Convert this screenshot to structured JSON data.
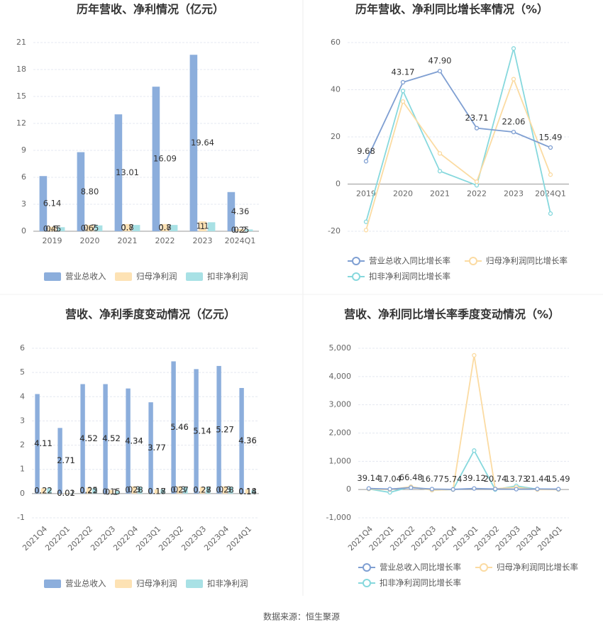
{
  "chart_data": [
    {
      "type": "bar",
      "title": "历年营收、净利情况（亿元）",
      "categories": [
        "2019",
        "2020",
        "2021",
        "2022",
        "2023",
        "2024Q1"
      ],
      "series": [
        {
          "name": "营业总收入",
          "color": "#8caedc",
          "values": [
            6.14,
            8.8,
            13.01,
            16.09,
            19.64,
            4.36
          ],
          "value_labels": [
            "6.14",
            "8.80",
            "13.01",
            "16.09",
            "19.64",
            "4.36"
          ]
        },
        {
          "name": "归母净利润",
          "color": "#fde2b4",
          "values": [
            0.5,
            0.7,
            0.8,
            0.8,
            1.1,
            0.25
          ]
        },
        {
          "name": "扣非净利润",
          "color": "#a8e1e5",
          "values": [
            0.45,
            0.65,
            0.7,
            0.7,
            1.0,
            0.2
          ]
        }
      ],
      "ylim": [
        0,
        21
      ],
      "yticks": [
        0,
        3,
        6,
        9,
        12,
        15,
        18,
        21
      ],
      "grid": true
    },
    {
      "type": "line",
      "title": "历年营收、净利同比增长率情况（%）",
      "categories": [
        "2019",
        "2020",
        "2021",
        "2022",
        "2023",
        "2024Q1"
      ],
      "series": [
        {
          "name": "营业总收入同比增长率",
          "color": "#7f9fd2",
          "values": [
            9.68,
            43.17,
            47.9,
            23.71,
            22.06,
            15.49
          ],
          "value_labels": [
            "9.68",
            "43.17",
            "47.90",
            "23.71",
            "22.06",
            "15.49"
          ]
        },
        {
          "name": "归母净利润同比增长率",
          "color": "#fbdba2",
          "values": [
            -19.5,
            35,
            13,
            1,
            44.5,
            4
          ]
        },
        {
          "name": "扣非净利润同比增长率",
          "color": "#86d8dd",
          "values": [
            -16,
            39.5,
            5.5,
            -0.5,
            57.5,
            -12.5
          ]
        }
      ],
      "ylim": [
        -20,
        60
      ],
      "yticks": [
        -20,
        0,
        20,
        40,
        60
      ],
      "grid": true
    },
    {
      "type": "bar",
      "title": "营收、净利季度变动情况（亿元）",
      "categories": [
        "2021Q4",
        "2022Q1",
        "2022Q2",
        "2022Q3",
        "2022Q4",
        "2023Q1",
        "2023Q2",
        "2023Q3",
        "2023Q4",
        "2024Q1"
      ],
      "series": [
        {
          "name": "营业总收入",
          "color": "#8caedc",
          "values": [
            4.11,
            2.71,
            4.52,
            4.52,
            4.34,
            3.77,
            5.46,
            5.14,
            5.27,
            4.36
          ]
        },
        {
          "name": "归母净利润",
          "color": "#fde2b4",
          "values": [
            0.22,
            0.02,
            0.25,
            0.15,
            0.3,
            0.18,
            0.3,
            0.28,
            0.3,
            0.18
          ]
        },
        {
          "name": "扣非净利润",
          "color": "#a8e1e5",
          "values": [
            0.22,
            0.01,
            0.22,
            0.1,
            0.28,
            0.17,
            0.27,
            0.27,
            0.28,
            0.14
          ]
        }
      ],
      "ylim": [
        -1,
        6
      ],
      "yticks": [
        -1,
        0,
        1,
        2,
        3,
        4,
        5,
        6
      ],
      "grid": true
    },
    {
      "type": "line",
      "title": "营收、净利同比增长率季度变动情况（%）",
      "categories": [
        "2021Q4",
        "2022Q1",
        "2022Q2",
        "2022Q3",
        "2022Q4",
        "2023Q1",
        "2023Q2",
        "2023Q3",
        "2023Q4",
        "2024Q1"
      ],
      "series": [
        {
          "name": "营业总收入同比增长率",
          "color": "#7f9fd2",
          "values": [
            39.14,
            17.04,
            66.48,
            16.77,
            5.74,
            39.12,
            20.74,
            13.73,
            21.44,
            15.49
          ]
        },
        {
          "name": "归母净利润同比增长率",
          "color": "#fbdba2",
          "values": [
            20,
            0,
            100,
            -20,
            0,
            4750,
            30,
            80,
            0,
            0
          ]
        },
        {
          "name": "扣非净利润同比增长率",
          "color": "#86d8dd",
          "values": [
            20,
            -100,
            100,
            -20,
            0,
            1380,
            0,
            130,
            10,
            0
          ]
        }
      ],
      "ylim": [
        -1000,
        5000
      ],
      "yticks": [
        {
          "value": -1000,
          "label": "-1,000"
        },
        0,
        {
          "value": 1000,
          "label": "1,000"
        },
        {
          "value": 2000,
          "label": "2,000"
        },
        {
          "value": 3000,
          "label": "3,000"
        },
        {
          "value": 4000,
          "label": "4,000"
        },
        {
          "value": 5000,
          "label": "5,000"
        }
      ],
      "grid": true
    }
  ],
  "source": "数据来源：恒生聚源"
}
